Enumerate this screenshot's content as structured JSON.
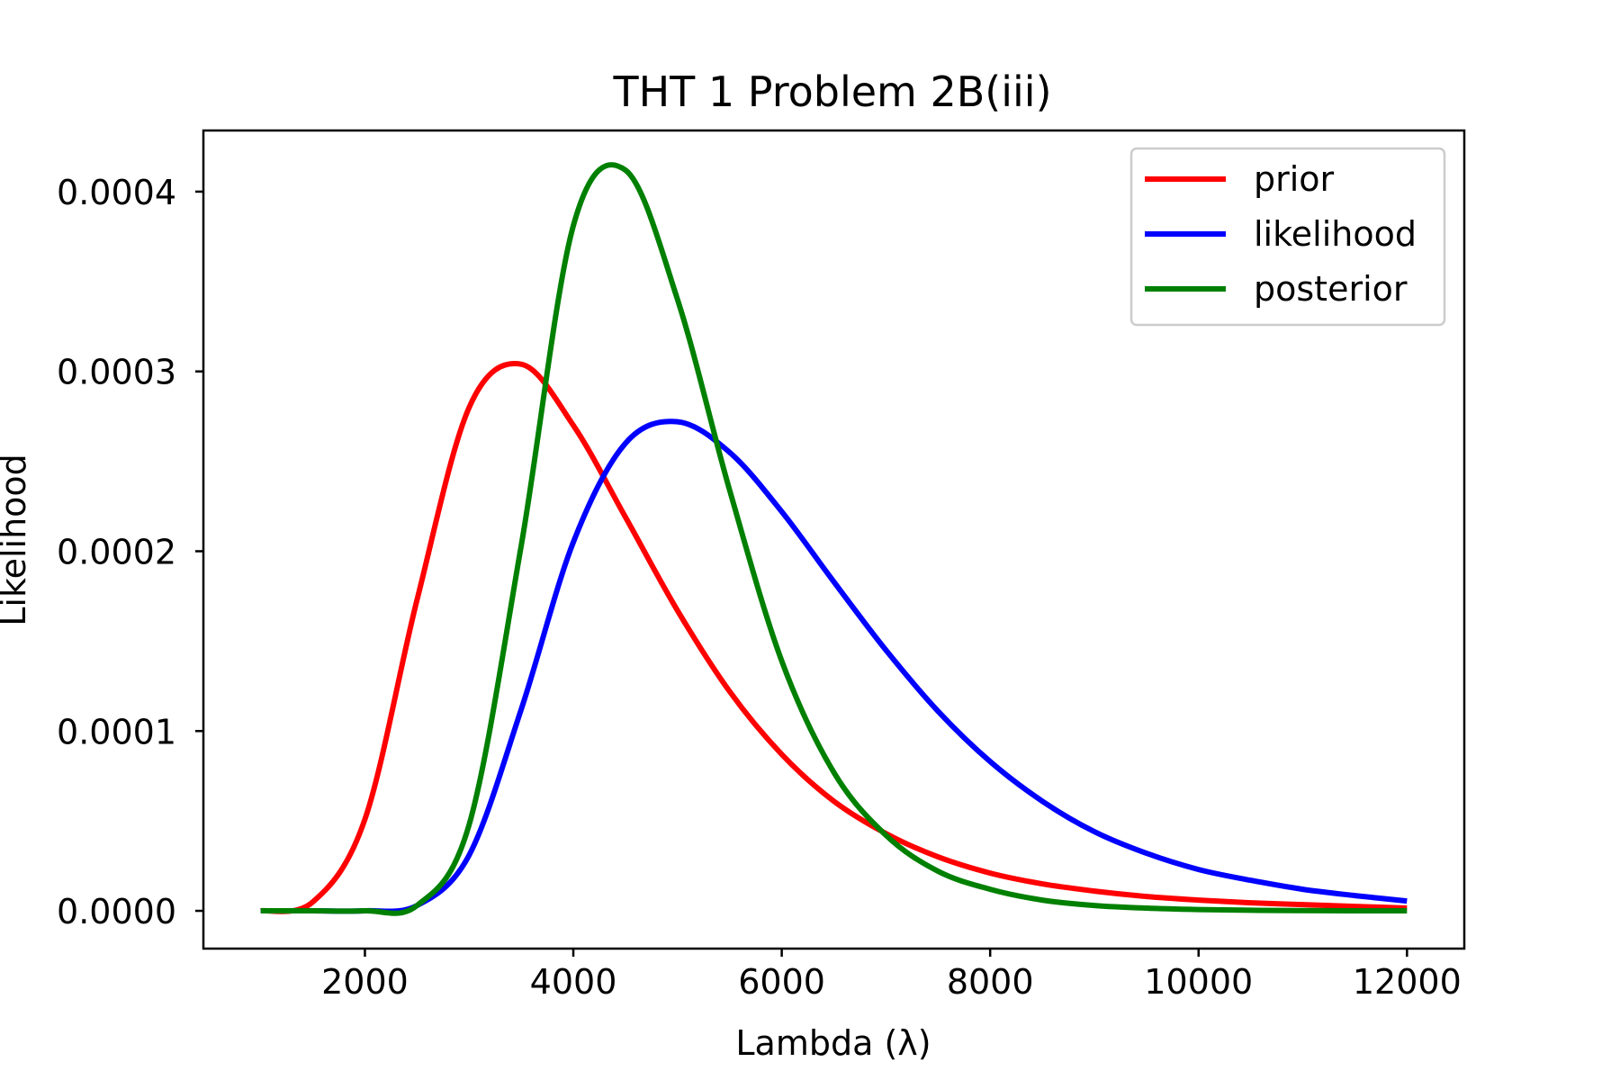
{
  "chart_data": {
    "type": "line",
    "title": "THT 1 Problem 2B(iii)",
    "xlabel": "Lambda (λ)",
    "ylabel": "Likelihood",
    "xlim": [
      450,
      12550
    ],
    "ylim": [
      -2.1e-05,
      0.000434
    ],
    "xticks": [
      2000,
      4000,
      6000,
      8000,
      10000,
      12000
    ],
    "xtick_labels": [
      "2000",
      "4000",
      "6000",
      "8000",
      "10000",
      "12000"
    ],
    "yticks": [
      0.0,
      0.0001,
      0.0002,
      0.0003,
      0.0004
    ],
    "ytick_labels": [
      "0.0000",
      "0.0001",
      "0.0002",
      "0.0003",
      "0.0004"
    ],
    "grid": false,
    "legend_position": "top-right",
    "x": [
      1000,
      1500,
      2000,
      2500,
      3000,
      3500,
      4000,
      4500,
      5000,
      5500,
      6000,
      6500,
      7000,
      7500,
      8000,
      8500,
      9000,
      9500,
      10000,
      10500,
      11000,
      11500,
      12000
    ],
    "series": [
      {
        "name": "prior",
        "color": "#ff0000",
        "values": [
          0.0,
          5e-06,
          5.1e-05,
          0.000173,
          0.00028,
          0.000304,
          0.00027,
          0.000219,
          0.000167,
          0.000122,
          8.7e-05,
          6.1e-05,
          4.3e-05,
          3e-05,
          2.1e-05,
          1.5e-05,
          1.1e-05,
          8e-06,
          6e-06,
          4.5e-06,
          3.5e-06,
          2.5e-06,
          1.5e-06
        ]
      },
      {
        "name": "likelihood",
        "color": "#0000ff",
        "values": [
          0.0,
          0.0,
          0.0,
          3e-06,
          3.1e-05,
          0.000112,
          0.000205,
          0.00026,
          0.000272,
          0.000255,
          0.000222,
          0.000183,
          0.000145,
          0.000111,
          8.3e-05,
          6.1e-05,
          4.4e-05,
          3.2e-05,
          2.3e-05,
          1.7e-05,
          1.2e-05,
          8.5e-06,
          5.5e-06
        ]
      },
      {
        "name": "posterior",
        "color": "#008000",
        "values": [
          0.0,
          0.0,
          0.0,
          3e-06,
          4.8e-05,
          0.000203,
          0.000381,
          0.000412,
          0.00034,
          0.000234,
          0.000139,
          7.7e-05,
          4.2e-05,
          2.2e-05,
          1.2e-05,
          6e-06,
          3e-06,
          1.5e-06,
          7e-07,
          3e-07,
          1e-07,
          0.0,
          0.0
        ]
      }
    ]
  }
}
